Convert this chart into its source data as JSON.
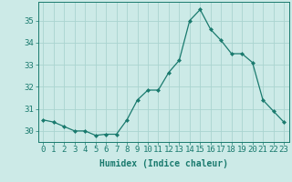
{
  "x": [
    0,
    1,
    2,
    3,
    4,
    5,
    6,
    7,
    8,
    9,
    10,
    11,
    12,
    13,
    14,
    15,
    16,
    17,
    18,
    19,
    20,
    21,
    22,
    23
  ],
  "y": [
    30.5,
    30.4,
    30.2,
    30.0,
    30.0,
    29.8,
    29.85,
    29.85,
    30.5,
    31.4,
    31.85,
    31.85,
    32.65,
    33.2,
    35.0,
    35.5,
    34.6,
    34.1,
    33.5,
    33.5,
    33.1,
    31.4,
    30.9,
    30.4
  ],
  "line_color": "#1a7a6e",
  "marker": "D",
  "marker_size": 2.0,
  "bg_color": "#cceae7",
  "grid_color": "#aad4d0",
  "xlabel": "Humidex (Indice chaleur)",
  "xlabel_fontsize": 7,
  "ylabel_ticks": [
    30,
    31,
    32,
    33,
    34,
    35
  ],
  "xlim": [
    -0.5,
    23.5
  ],
  "ylim": [
    29.5,
    35.85
  ],
  "tick_fontsize": 6.5
}
